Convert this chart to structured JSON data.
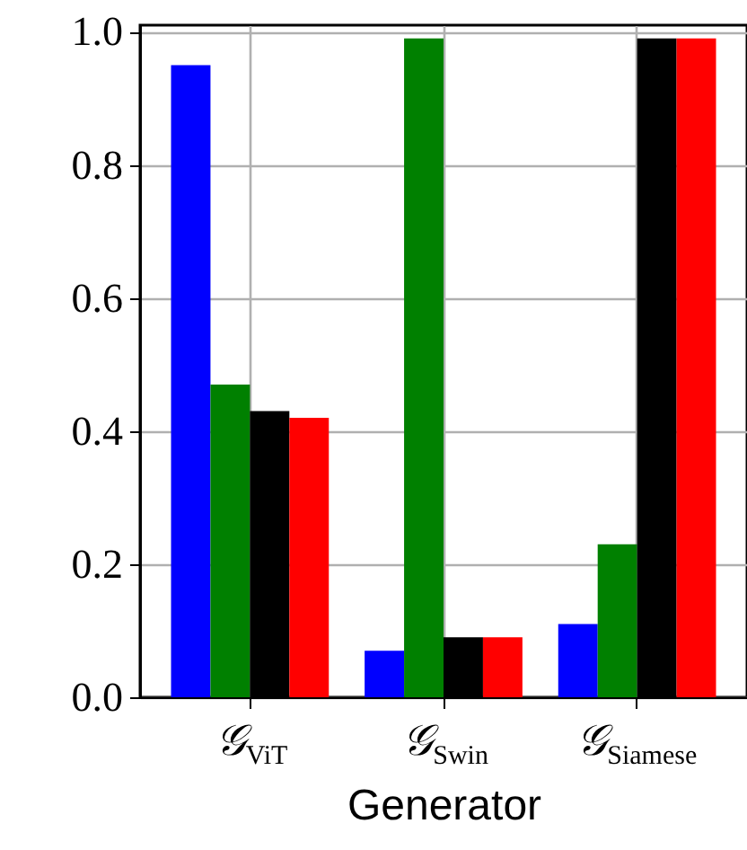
{
  "chart_data": {
    "type": "bar",
    "xlabel": "Generator",
    "categories": [
      "𝒢$_{ViT}$",
      "𝒢$_{Swin}$",
      "𝒢$_{Siamese}$"
    ],
    "series": [
      {
        "color": "#0000ff",
        "values": [
          0.95,
          0.07,
          0.11
        ]
      },
      {
        "color": "#008000",
        "values": [
          0.47,
          0.99,
          0.23
        ]
      },
      {
        "color": "#000000",
        "values": [
          0.43,
          0.09,
          0.99
        ]
      },
      {
        "color": "#ff0000",
        "values": [
          0.42,
          0.09,
          0.99
        ]
      }
    ],
    "ylim": [
      0,
      1.01
    ],
    "yticks": [
      {
        "value": 0,
        "label": "0.0"
      },
      {
        "value": 0.2,
        "label": "0.2"
      },
      {
        "value": 0.4,
        "label": "0.4"
      },
      {
        "value": 0.6,
        "label": "0.6"
      },
      {
        "value": 0.8,
        "label": "0.8"
      },
      {
        "value": 1,
        "label": "1.0"
      }
    ],
    "grid": true
  }
}
